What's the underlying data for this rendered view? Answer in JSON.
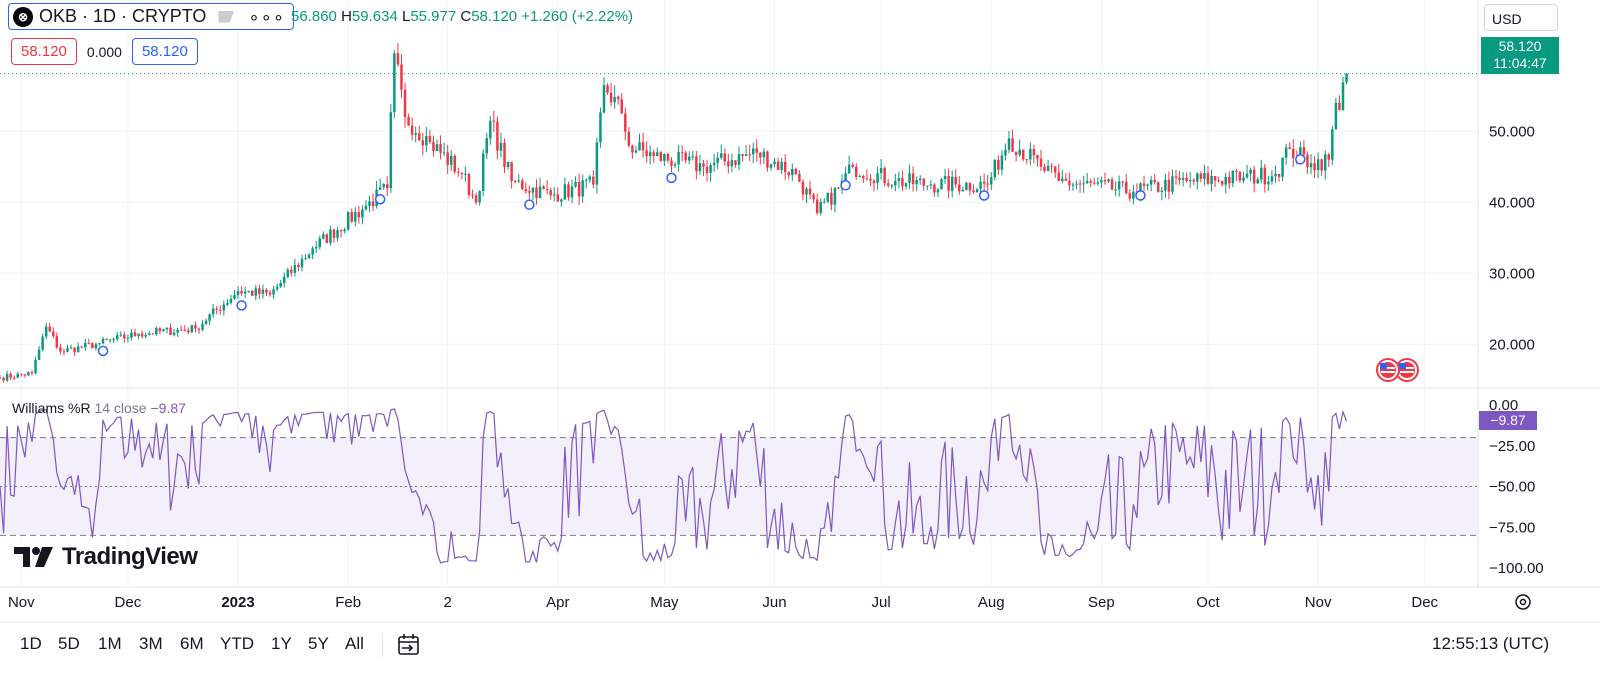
{
  "header": {
    "symbol": "OKB · 1D · CRYPTO",
    "logo_letter": "⊗",
    "more_icon": "dots-icon",
    "ohlc": {
      "o_label": "",
      "o_value": "56.860",
      "h_label": "H",
      "h_value": "59.634",
      "l_label": "L",
      "l_value": "55.977",
      "c_label": "C",
      "c_value": "58.120",
      "change": "+1.260 (+2.22%)"
    },
    "sell_price": "58.120",
    "spread": "0.000",
    "buy_price": "58.120",
    "currency": "USD"
  },
  "price_tag": {
    "price": "58.120",
    "countdown": "11:04:47"
  },
  "indicator": {
    "name": "Williams %R",
    "params": "14 close",
    "value": "−9.87",
    "tag": "−9.87"
  },
  "branding": {
    "logo_text": "TradingView"
  },
  "time_ranges": [
    "1D",
    "5D",
    "1M",
    "3M",
    "6M",
    "YTD",
    "1Y",
    "5Y",
    "All"
  ],
  "clock": "12:55:13 (UTC)",
  "colors": {
    "up": "#089981",
    "down": "#f23645",
    "indicator": "#7e57c2",
    "band_fill": "#f3effb"
  },
  "chart_data": [
    {
      "type": "candlestick",
      "series_name": "OKB",
      "y_ticks": [
        "20.000",
        "30.000",
        "40.000",
        "50.000"
      ],
      "ylim": [
        12.0,
        63.0
      ],
      "x_ticks": [
        "Nov",
        "Dec",
        "2023",
        "Feb",
        "2",
        "Apr",
        "May",
        "Jun",
        "Jul",
        "Aug",
        "Sep",
        "Oct",
        "Nov",
        "Dec"
      ],
      "xlim": [
        "2022-10-26",
        "2023-12-16"
      ],
      "last_price": 58.12,
      "close_anchors": [
        [
          "2022-10-26",
          15.3
        ],
        [
          "2022-11-04",
          15.9
        ],
        [
          "2022-11-08",
          22.5
        ],
        [
          "2022-11-12",
          19.0
        ],
        [
          "2022-11-22",
          20.0
        ],
        [
          "2022-12-04",
          21.5
        ],
        [
          "2022-12-20",
          22.2
        ],
        [
          "2023-01-01",
          27.5
        ],
        [
          "2023-01-10",
          27.0
        ],
        [
          "2023-01-22",
          33.5
        ],
        [
          "2023-02-06",
          39.5
        ],
        [
          "2023-02-12",
          42.0
        ],
        [
          "2023-02-14",
          61.0
        ],
        [
          "2023-02-17",
          52.0
        ],
        [
          "2023-02-24",
          48.5
        ],
        [
          "2023-03-05",
          44.0
        ],
        [
          "2023-03-09",
          40.0
        ],
        [
          "2023-03-13",
          51.5
        ],
        [
          "2023-03-19",
          43.0
        ],
        [
          "2023-03-30",
          41.0
        ],
        [
          "2023-04-11",
          42.5
        ],
        [
          "2023-04-14",
          56.5
        ],
        [
          "2023-04-19",
          52.5
        ],
        [
          "2023-04-21",
          48.0
        ],
        [
          "2023-04-28",
          46.5
        ],
        [
          "2023-05-12",
          45.0
        ],
        [
          "2023-05-27",
          47.0
        ],
        [
          "2023-06-07",
          44.0
        ],
        [
          "2023-06-13",
          38.5
        ],
        [
          "2023-06-19",
          42.0
        ],
        [
          "2023-06-23",
          45.0
        ],
        [
          "2023-07-05",
          43.0
        ],
        [
          "2023-07-15",
          42.5
        ],
        [
          "2023-07-31",
          42.5
        ],
        [
          "2023-08-06",
          49.0
        ],
        [
          "2023-08-15",
          45.0
        ],
        [
          "2023-08-20",
          43.0
        ],
        [
          "2023-09-10",
          41.5
        ],
        [
          "2023-09-25",
          43.0
        ],
        [
          "2023-10-11",
          43.5
        ],
        [
          "2023-10-20",
          44.0
        ],
        [
          "2023-10-24",
          47.5
        ],
        [
          "2023-10-30",
          45.5
        ],
        [
          "2023-11-04",
          46.0
        ],
        [
          "2023-11-06",
          54.0
        ],
        [
          "2023-11-07",
          53.0
        ],
        [
          "2023-11-08",
          56.9
        ],
        [
          "2023-11-09",
          58.12
        ]
      ],
      "event_markers": [
        "2022-11-24",
        "2023-01-02",
        "2023-02-10",
        "2023-03-24",
        "2023-05-03",
        "2023-06-21",
        "2023-07-30",
        "2023-09-12",
        "2023-10-27"
      ]
    },
    {
      "type": "line",
      "series_name": "Williams %R",
      "y_ticks": [
        "0.00",
        "−25.00",
        "−50.00",
        "−75.00",
        "−100.00"
      ],
      "ylim": [
        -100,
        0
      ],
      "bands": {
        "upper": -20,
        "middle": -50,
        "lower": -80
      },
      "last_value": -9.87
    }
  ]
}
